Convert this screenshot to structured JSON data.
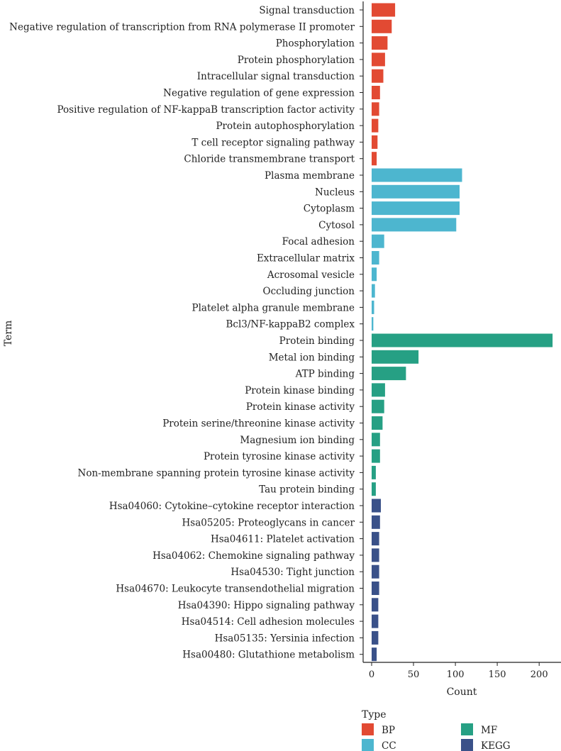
{
  "chart_data": {
    "type": "bar",
    "orientation": "horizontal",
    "xlabel": "Count",
    "ylabel": "Term",
    "xlim": [
      0,
      220
    ],
    "xticks": [
      0,
      50,
      100,
      150,
      200
    ],
    "legend": {
      "title": "Type",
      "position": "bottom",
      "items": [
        {
          "name": "BP",
          "color": "#E24A33"
        },
        {
          "name": "CC",
          "color": "#4DB6CF"
        },
        {
          "name": "MF",
          "color": "#26A084"
        },
        {
          "name": "KEGG",
          "color": "#3A5189"
        }
      ]
    },
    "categories": [
      {
        "term": "Signal transduction",
        "type": "BP",
        "count": 28
      },
      {
        "term": "Negative regulation of transcription from RNA polymerase II promoter",
        "type": "BP",
        "count": 24
      },
      {
        "term": "Phosphorylation",
        "type": "BP",
        "count": 19
      },
      {
        "term": "Protein phosphorylation",
        "type": "BP",
        "count": 16
      },
      {
        "term": "Intracellular signal transduction",
        "type": "BP",
        "count": 14
      },
      {
        "term": "Negative regulation of gene expression",
        "type": "BP",
        "count": 10
      },
      {
        "term": "Positive regulation of NF-kappaB transcription factor activity",
        "type": "BP",
        "count": 9
      },
      {
        "term": "Protein autophosphorylation",
        "type": "BP",
        "count": 8
      },
      {
        "term": "T cell receptor signaling pathway",
        "type": "BP",
        "count": 7
      },
      {
        "term": "Chloride transmembrane transport",
        "type": "BP",
        "count": 6
      },
      {
        "term": "Plasma membrane",
        "type": "CC",
        "count": 108
      },
      {
        "term": "Nucleus",
        "type": "CC",
        "count": 105
      },
      {
        "term": "Cytoplasm",
        "type": "CC",
        "count": 105
      },
      {
        "term": "Cytosol",
        "type": "CC",
        "count": 101
      },
      {
        "term": "Focal adhesion",
        "type": "CC",
        "count": 15
      },
      {
        "term": "Extracellular matrix",
        "type": "CC",
        "count": 9
      },
      {
        "term": "Acrosomal vesicle",
        "type": "CC",
        "count": 6
      },
      {
        "term": "Occluding junction",
        "type": "CC",
        "count": 4
      },
      {
        "term": "Platelet alpha granule membrane",
        "type": "CC",
        "count": 3
      },
      {
        "term": "Bcl3/NF-kappaB2 complex",
        "type": "CC",
        "count": 2
      },
      {
        "term": "Protein binding",
        "type": "MF",
        "count": 216
      },
      {
        "term": "Metal ion binding",
        "type": "MF",
        "count": 56
      },
      {
        "term": "ATP binding",
        "type": "MF",
        "count": 41
      },
      {
        "term": "Protein kinase binding",
        "type": "MF",
        "count": 16
      },
      {
        "term": "Protein kinase activity",
        "type": "MF",
        "count": 15
      },
      {
        "term": "Protein serine/threonine kinase activity",
        "type": "MF",
        "count": 13
      },
      {
        "term": "Magnesium ion binding",
        "type": "MF",
        "count": 10
      },
      {
        "term": "Protein tyrosine kinase activity",
        "type": "MF",
        "count": 10
      },
      {
        "term": "Non-membrane spanning protein tyrosine kinase activity",
        "type": "MF",
        "count": 5
      },
      {
        "term": "Tau protein binding",
        "type": "MF",
        "count": 5
      },
      {
        "term": "Hsa04060: Cytokine–cytokine receptor interaction",
        "type": "KEGG",
        "count": 11
      },
      {
        "term": "Hsa05205: Proteoglycans in cancer",
        "type": "KEGG",
        "count": 10
      },
      {
        "term": "Hsa04611: Platelet activation",
        "type": "KEGG",
        "count": 9
      },
      {
        "term": "Hsa04062: Chemokine signaling pathway",
        "type": "KEGG",
        "count": 9
      },
      {
        "term": "Hsa04530: Tight junction",
        "type": "KEGG",
        "count": 9
      },
      {
        "term": "Hsa04670: Leukocyte transendothelial migration",
        "type": "KEGG",
        "count": 9
      },
      {
        "term": "Hsa04390: Hippo signaling pathway",
        "type": "KEGG",
        "count": 8
      },
      {
        "term": "Hsa04514: Cell adhesion molecules",
        "type": "KEGG",
        "count": 8
      },
      {
        "term": "Hsa05135: Yersinia infection",
        "type": "KEGG",
        "count": 8
      },
      {
        "term": "Hsa00480: Glutathione metabolism",
        "type": "KEGG",
        "count": 6
      }
    ]
  }
}
